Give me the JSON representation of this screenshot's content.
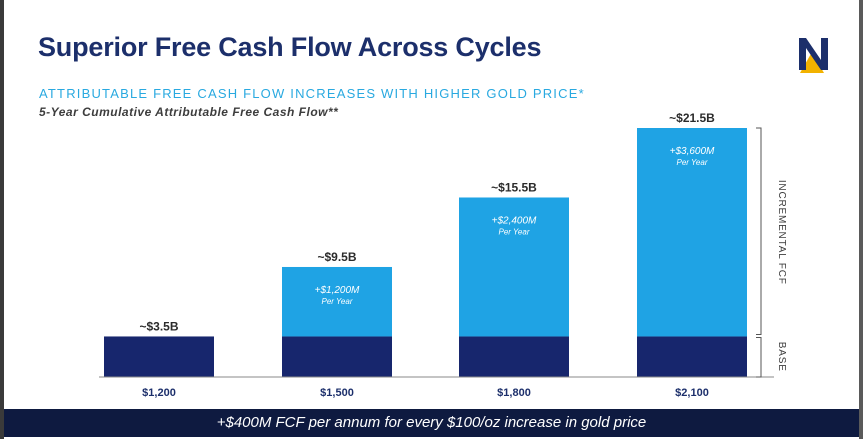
{
  "slide": {
    "title": "Superior Free Cash Flow Across Cycles",
    "subtitle": "ATTRIBUTABLE FREE CASH FLOW INCREASES WITH HIGHER GOLD PRICE*",
    "subtitle2": "5-Year Cumulative Attributable Free Cash Flow**",
    "footer": "+$400M FCF per annum for every $100/oz increase in gold price",
    "logo_letter": "N"
  },
  "colors": {
    "title": "#1c2f6b",
    "accent": "#29a9e0",
    "base": "#17266d",
    "incremental": "#1fa3e4",
    "footer_bg": "#0e1a40",
    "logo_gold": "#f2b200"
  },
  "chart_data": {
    "type": "bar",
    "stacked": true,
    "categories": [
      "$1,200",
      "$1,500",
      "$1,800",
      "$2,100"
    ],
    "series": [
      {
        "name": "BASE",
        "values": [
          3.5,
          3.5,
          3.5,
          3.5
        ]
      },
      {
        "name": "INCREMENTAL FCF",
        "values": [
          0,
          6.0,
          12.0,
          18.0
        ]
      }
    ],
    "totals": [
      3.5,
      9.5,
      15.5,
      21.5
    ],
    "total_labels": [
      "~$3.5B",
      "~$9.5B",
      "~$15.5B",
      "~$21.5B"
    ],
    "incremental_labels": [
      null,
      "+$1,200M",
      "+$2,400M",
      "+$3,600M"
    ],
    "incremental_sublabel": "Per Year",
    "bracket_labels": {
      "base": "BASE",
      "incremental": "INCREMENTAL FCF"
    },
    "ylim": [
      0,
      21.5
    ],
    "grid": false,
    "legend": "right-side bracket labels"
  }
}
